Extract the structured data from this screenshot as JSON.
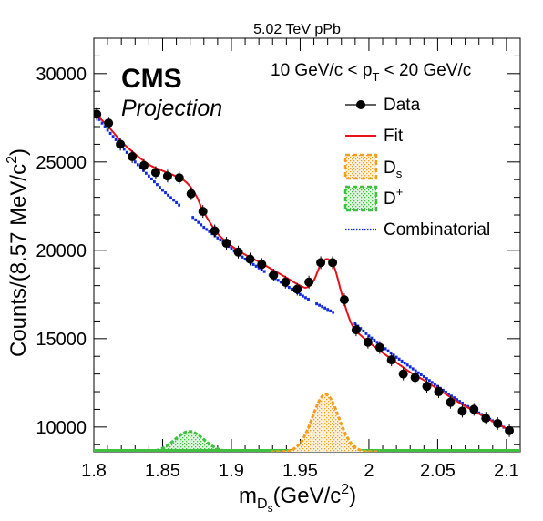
{
  "chart_data": {
    "type": "scatter",
    "title": "5.02 TeV pPb",
    "xlabel": {
      "main": "m",
      "sub": "D",
      "subsub": "s",
      "unit": "(GeV/c",
      "sup": "2",
      "close": ")"
    },
    "ylabel": {
      "main": "Counts/(8.57 MeV/c",
      "sup": "2",
      "close": ")"
    },
    "xlim": [
      1.8,
      2.11
    ],
    "ylim": [
      8600,
      32000
    ],
    "x_ticks": [
      1.8,
      1.85,
      1.9,
      1.95,
      2.0,
      2.05,
      2.1
    ],
    "x_tick_labels": [
      "1.8",
      "1.85",
      "1.9",
      "1.95",
      "2",
      "2.05",
      "2.1"
    ],
    "y_ticks": [
      10000,
      15000,
      20000,
      25000,
      30000
    ],
    "y_tick_labels": [
      "10000",
      "15000",
      "20000",
      "25000",
      "30000"
    ],
    "cms_label": "CMS",
    "projection_label": "Projection",
    "range_label": {
      "pre": "10 GeV/c < p",
      "sub": "T",
      "post": " < 20 GeV/c"
    },
    "legend": {
      "placement": "top-right",
      "entries": [
        {
          "label": "Data",
          "style": "marker"
        },
        {
          "label": "Fit",
          "style": "line"
        },
        {
          "label": "D",
          "sub": "s",
          "style": "ds-fill"
        },
        {
          "label": "D",
          "sup": "+",
          "style": "dplus-fill"
        },
        {
          "label": "Combinatorial",
          "style": "dotted"
        }
      ]
    },
    "colors": {
      "data": "#000000",
      "fit": "#e8101a",
      "ds": "#f0a020",
      "dplus": "#40c040",
      "combinatorial": "#1028e0"
    },
    "series": [
      {
        "name": "Data",
        "x": [
          1.8021,
          1.8107,
          1.8193,
          1.8279,
          1.8364,
          1.845,
          1.8536,
          1.8621,
          1.8707,
          1.8793,
          1.8879,
          1.8964,
          1.905,
          1.9136,
          1.9221,
          1.9307,
          1.9393,
          1.9479,
          1.9564,
          1.965,
          1.9736,
          1.9821,
          1.9907,
          1.9993,
          2.0079,
          2.0164,
          2.025,
          2.0336,
          2.0421,
          2.0507,
          2.0593,
          2.0679,
          2.0764,
          2.085,
          2.0936,
          2.1021
        ],
        "y": [
          27700,
          27200,
          26000,
          25300,
          24800,
          24400,
          24200,
          24100,
          23200,
          22200,
          21100,
          20400,
          19900,
          19500,
          19200,
          18600,
          18200,
          17800,
          18200,
          19300,
          19300,
          17200,
          15500,
          14800,
          14500,
          13800,
          13000,
          12800,
          12300,
          12000,
          11400,
          10900,
          11000,
          10500,
          10200,
          9800
        ]
      },
      {
        "name": "Fit",
        "x": [
          1.8,
          1.81,
          1.82,
          1.83,
          1.84,
          1.85,
          1.855,
          1.86,
          1.865,
          1.87,
          1.875,
          1.88,
          1.89,
          1.9,
          1.91,
          1.92,
          1.93,
          1.94,
          1.95,
          1.955,
          1.96,
          1.965,
          1.97,
          1.975,
          1.98,
          1.985,
          1.99,
          2.0,
          2.01,
          2.02,
          2.03,
          2.04,
          2.05,
          2.06,
          2.07,
          2.08,
          2.09,
          2.1,
          2.105
        ],
        "y": [
          27800,
          27050,
          26150,
          25450,
          24850,
          24500,
          24350,
          24180,
          23990,
          23620,
          23000,
          22150,
          20950,
          20250,
          19750,
          19350,
          18900,
          18450,
          18000,
          17900,
          18300,
          19200,
          19500,
          19000,
          17600,
          16300,
          15500,
          14800,
          14200,
          13650,
          13100,
          12650,
          12150,
          11650,
          11180,
          10750,
          10320,
          9920,
          9760
        ]
      },
      {
        "name": "Combinatorial",
        "x": [
          1.8,
          1.81,
          1.82,
          1.83,
          1.84,
          1.85,
          1.86,
          1.87,
          1.88,
          1.89,
          1.9,
          1.91,
          1.92,
          1.93,
          1.94,
          1.95,
          1.96,
          1.97,
          1.98,
          1.99,
          2.0,
          2.01,
          2.02,
          2.03,
          2.04,
          2.05,
          2.06,
          2.07,
          2.08,
          2.09,
          2.1
        ],
        "y": [
          27800,
          26800,
          25900,
          25000,
          24200,
          23400,
          22700,
          22000,
          21300,
          20700,
          20100,
          19500,
          19000,
          18500,
          18000,
          17500,
          17050,
          16650,
          16250,
          15850,
          15150,
          14550,
          13950,
          13400,
          12850,
          12300,
          11750,
          11250,
          10800,
          10350,
          9900
        ],
        "dots_per_segment": 10,
        "gaps_x": [
          1.862,
          1.872,
          1.924,
          1.928,
          1.956,
          1.962,
          1.974,
          1.99
        ]
      },
      {
        "name": "Dₛ",
        "peak_x": 1.9685,
        "peak_y": 11850,
        "sigma": 0.0095,
        "baseline": 8600
      },
      {
        "name": "D⁺",
        "peak_x": 1.8695,
        "peak_y": 9750,
        "sigma": 0.0105,
        "baseline": 8600
      }
    ]
  }
}
